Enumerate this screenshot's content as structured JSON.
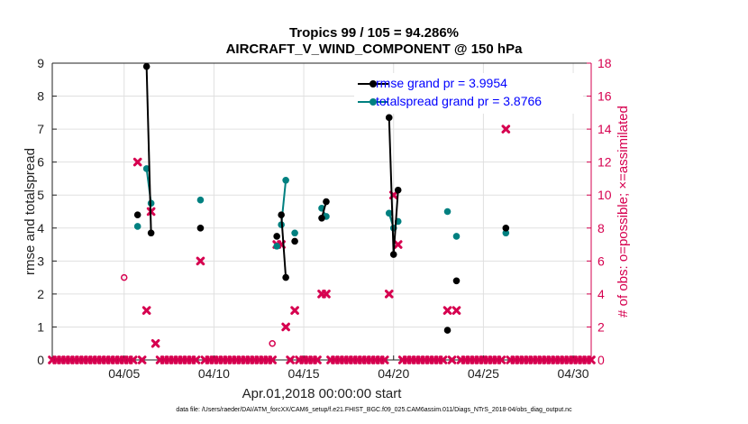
{
  "title_line1": "Tropics 99 / 105 = 94.286%",
  "title_line2": "AIRCRAFT_V_WIND_COMPONENT @ 150 hPa",
  "footer": "data file: /Users/raeder/DAI/ATM_forcXX/CAM6_setup/f.e21.FHIST_BGC.f09_025.CAM6assim.011/Diags_NTrS_2018-04/obs_diag_output.nc",
  "colors": {
    "rmse": "#000000",
    "spread": "#008080",
    "obs": "#d6004f",
    "grid": "#e0e0e0",
    "legend_text": "#0000ff"
  },
  "chart_data": {
    "type": "line",
    "xlabel": "Apr.01,2018 00:00:00 start",
    "ylabel_left": "rmse and totalspread",
    "ylabel_right": "# of obs: o=possible; ×=assimilated",
    "xlim": [
      1.0,
      31.0
    ],
    "ylim_left": [
      0,
      9
    ],
    "ylim_right": [
      0,
      18
    ],
    "xticks": [
      5,
      10,
      15,
      20,
      25,
      30
    ],
    "xtick_labels": [
      "04/05",
      "04/10",
      "04/15",
      "04/20",
      "04/25",
      "04/30"
    ],
    "yticks_left": [
      "0",
      "1",
      "2",
      "3",
      "4",
      "5",
      "6",
      "7",
      "8",
      "9"
    ],
    "yticks_right": [
      "0",
      "2",
      "4",
      "6",
      "8",
      "10",
      "12",
      "14",
      "16",
      "18"
    ],
    "legend": [
      "rmse grand pr = 3.9954",
      "totalspread grand pr = 3.8766"
    ],
    "rmse": [
      [
        [
          5.75,
          4.4
        ]
      ],
      [
        [
          6.25,
          8.9
        ],
        [
          6.5,
          3.85
        ]
      ],
      [
        [
          9.25,
          4.0
        ]
      ],
      [
        [
          13.5,
          3.75
        ]
      ],
      [
        [
          13.75,
          4.4
        ],
        [
          14.0,
          2.5
        ]
      ],
      [
        [
          14.5,
          3.6
        ]
      ],
      [
        [
          16.0,
          4.3
        ],
        [
          16.25,
          4.8
        ]
      ],
      [
        [
          19.75,
          7.35
        ],
        [
          20.0,
          3.2
        ],
        [
          20.25,
          5.15
        ]
      ],
      [
        [
          23.0,
          0.9
        ]
      ],
      [
        [
          23.5,
          2.4
        ]
      ],
      [
        [
          26.25,
          4.0
        ]
      ]
    ],
    "totalspread": [
      [
        [
          5.75,
          4.05
        ]
      ],
      [
        [
          6.25,
          5.8
        ],
        [
          6.5,
          4.75
        ]
      ],
      [
        [
          9.25,
          4.85
        ]
      ],
      [
        [
          13.5,
          3.45
        ]
      ],
      [
        [
          13.75,
          4.1
        ],
        [
          14.0,
          5.45
        ]
      ],
      [
        [
          14.5,
          3.85
        ]
      ],
      [
        [
          16.0,
          4.6
        ],
        [
          16.25,
          4.35
        ]
      ],
      [
        [
          19.75,
          4.45
        ],
        [
          20.0,
          4.0
        ],
        [
          20.25,
          4.2
        ]
      ],
      [
        [
          23.0,
          4.5
        ]
      ],
      [
        [
          23.5,
          3.75
        ]
      ],
      [
        [
          26.25,
          3.85
        ]
      ]
    ],
    "obs_assimilated_nonzero": [
      [
        5.75,
        12
      ],
      [
        6.25,
        3
      ],
      [
        6.5,
        9
      ],
      [
        6.75,
        1
      ],
      [
        9.25,
        6
      ],
      [
        13.5,
        7
      ],
      [
        13.75,
        7
      ],
      [
        14.0,
        2
      ],
      [
        14.5,
        3
      ],
      [
        16.0,
        4
      ],
      [
        16.25,
        4
      ],
      [
        19.75,
        4
      ],
      [
        20.0,
        10
      ],
      [
        20.25,
        7
      ],
      [
        23.0,
        3
      ],
      [
        23.5,
        3
      ],
      [
        26.25,
        14
      ]
    ],
    "obs_possible_only": [
      [
        5.0,
        5
      ],
      [
        13.25,
        1
      ]
    ]
  }
}
